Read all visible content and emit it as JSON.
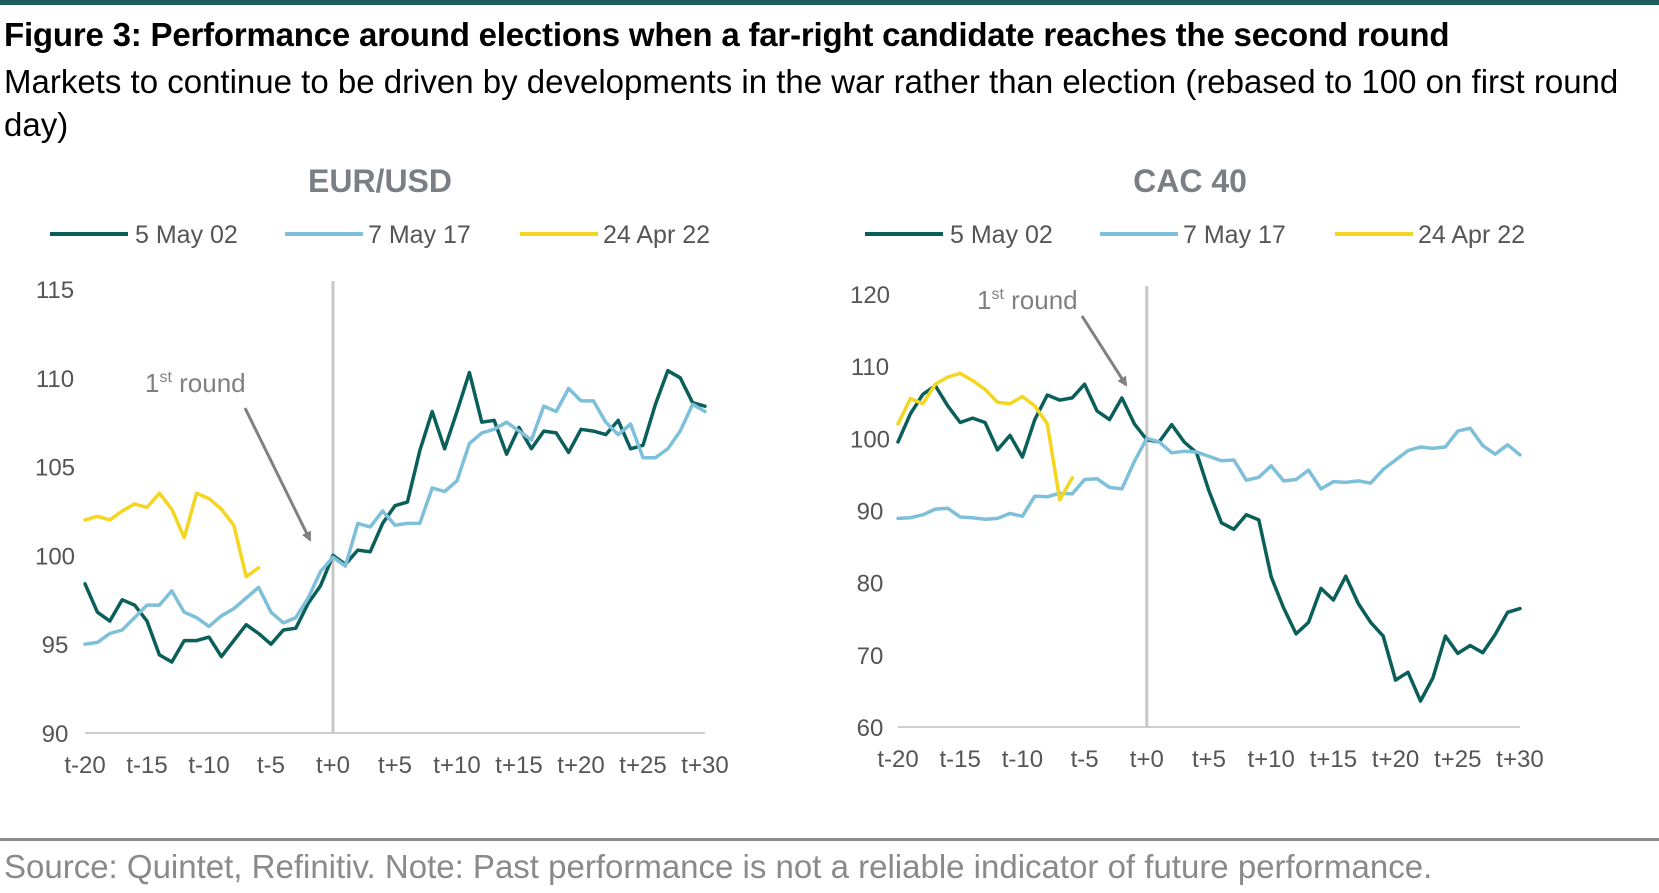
{
  "figure": {
    "title": "Figure 3: Performance around elections when a far-right candidate reaches the second round",
    "subtitle": "Markets to continue to be driven by developments in the war rather than election (rebased to 100 on first round day)",
    "source": "Source: Quintet, Refinitiv. Note: Past performance is not a reliable indicator of future performance.",
    "annotation": {
      "text": "1",
      "sup": "st",
      "tail": " round"
    }
  },
  "colors": {
    "rule": "#1f5f5b",
    "series_2002": "#0b5f5a",
    "series_2017": "#7ebfd9",
    "series_2022": "#f4d51f",
    "event_line": "#c8c8c8",
    "axis_text": "#555555",
    "arrow": "#808080"
  },
  "chart_data": [
    {
      "type": "line",
      "title": "EUR/USD",
      "ylim": [
        90,
        115
      ],
      "yticks": [
        90,
        95,
        100,
        105,
        110,
        115
      ],
      "xlim": [
        -20,
        30
      ],
      "xticks": [
        "t-20",
        "t-15",
        "t-10",
        "t-5",
        "t+0",
        "t+5",
        "t+10",
        "t+15",
        "t+20",
        "t+25",
        "t+30"
      ],
      "event_x": 0,
      "legend": "top",
      "series": [
        {
          "name": "5 May 02",
          "start": -20,
          "values": [
            98.4,
            96.8,
            96.3,
            97.5,
            97.2,
            96.3,
            94.4,
            94.0,
            95.2,
            95.2,
            95.4,
            94.3,
            95.2,
            96.1,
            95.6,
            95.0,
            95.8,
            95.9,
            97.3,
            98.3,
            100.0,
            99.5,
            100.3,
            100.2,
            101.8,
            102.8,
            103.0,
            105.9,
            108.1,
            106.0,
            108.1,
            110.3,
            107.5,
            107.6,
            105.7,
            107.2,
            106.0,
            107.0,
            106.9,
            105.8,
            107.1,
            107.0,
            106.8,
            107.6,
            106.0,
            106.2,
            108.5,
            110.4,
            110.0,
            108.6,
            108.4
          ]
        },
        {
          "name": "7 May 17",
          "start": -20,
          "values": [
            95.0,
            95.1,
            95.6,
            95.8,
            96.5,
            97.2,
            97.2,
            98.0,
            96.8,
            96.5,
            96.0,
            96.6,
            97.0,
            97.6,
            98.2,
            96.8,
            96.2,
            96.5,
            97.6,
            99.1,
            99.9,
            99.4,
            101.8,
            101.6,
            102.5,
            101.7,
            101.8,
            101.8,
            103.8,
            103.6,
            104.2,
            106.3,
            106.9,
            107.1,
            107.5,
            107.0,
            106.5,
            108.4,
            108.1,
            109.4,
            108.7,
            108.7,
            107.5,
            106.8,
            107.4,
            105.5,
            105.5,
            106.0,
            107.0,
            108.5,
            108.1
          ]
        },
        {
          "name": "24 Apr 22",
          "start": -20,
          "values": [
            102.0,
            102.2,
            102.0,
            102.5,
            102.9,
            102.7,
            103.5,
            102.6,
            101.0,
            103.5,
            103.2,
            102.6,
            101.7,
            98.8,
            99.3
          ]
        }
      ]
    },
    {
      "type": "line",
      "title": "CAC 40",
      "ylim": [
        60,
        120
      ],
      "yticks": [
        60,
        70,
        80,
        90,
        100,
        110,
        120
      ],
      "xlim": [
        -20,
        30
      ],
      "xticks": [
        "t-20",
        "t-15",
        "t-10",
        "t-5",
        "t+0",
        "t+5",
        "t+10",
        "t+15",
        "t+20",
        "t+25",
        "t+30"
      ],
      "event_x": 0,
      "legend": "top",
      "series": [
        {
          "name": "5 May 02",
          "start": -20,
          "values": [
            99.5,
            103.4,
            106.1,
            107.3,
            104.5,
            102.2,
            102.8,
            102.2,
            98.4,
            100.4,
            97.4,
            102.6,
            106.0,
            105.3,
            105.6,
            107.5,
            103.8,
            102.6,
            105.6,
            102.0,
            99.8,
            99.5,
            101.9,
            99.5,
            98.0,
            92.7,
            88.3,
            87.4,
            89.4,
            88.7,
            80.8,
            76.5,
            72.9,
            74.5,
            79.2,
            77.6,
            80.9,
            77.1,
            74.5,
            72.6,
            66.5,
            67.6,
            63.6,
            66.8,
            72.6,
            70.2,
            71.3,
            70.3,
            72.8,
            75.9,
            76.4
          ]
        },
        {
          "name": "7 May 17",
          "start": -20,
          "values": [
            88.9,
            89.0,
            89.4,
            90.2,
            90.3,
            89.1,
            89.0,
            88.8,
            88.9,
            89.6,
            89.2,
            92.0,
            91.9,
            92.4,
            92.3,
            94.3,
            94.4,
            93.2,
            93.0,
            96.8,
            100.0,
            99.5,
            98.0,
            98.2,
            98.1,
            97.5,
            96.9,
            97.0,
            94.2,
            94.6,
            96.2,
            94.1,
            94.3,
            95.6,
            93.0,
            94.0,
            93.9,
            94.1,
            93.8,
            95.7,
            97.0,
            98.3,
            98.8,
            98.6,
            98.8,
            101.0,
            101.4,
            99.0,
            97.8,
            99.1,
            97.7
          ]
        },
        {
          "name": "24 Apr 22",
          "start": -20,
          "values": [
            102.0,
            105.5,
            104.8,
            107.5,
            108.5,
            109.0,
            108.0,
            106.8,
            105.0,
            104.8,
            105.8,
            104.5,
            102.0,
            91.5,
            94.5
          ]
        }
      ]
    }
  ]
}
